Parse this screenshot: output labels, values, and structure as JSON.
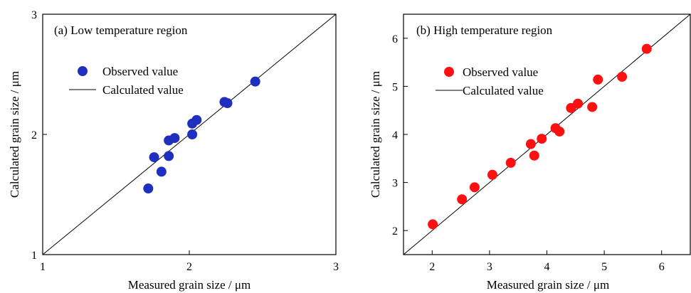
{
  "chart_data": [
    {
      "type": "scatter",
      "title": "(a) Low temperature region",
      "xlabel": "Measured grain size / μm",
      "ylabel": "Calculated grain size / μm",
      "xlim": [
        1,
        3
      ],
      "ylim": [
        1,
        3
      ],
      "x_ticks": [
        "1",
        "2",
        "3"
      ],
      "y_ticks": [
        "1",
        "2",
        "3"
      ],
      "legend": {
        "placement": "upper-left",
        "observed": "Observed value",
        "calculated": "Calculated value"
      },
      "marker_color": "#1f2fbf",
      "series": [
        {
          "name": "Observed value",
          "points": [
            [
              1.72,
              1.55
            ],
            [
              1.76,
              1.81
            ],
            [
              1.81,
              1.69
            ],
            [
              1.86,
              1.82
            ],
            [
              1.86,
              1.95
            ],
            [
              1.9,
              1.97
            ],
            [
              2.02,
              2.0
            ],
            [
              2.02,
              2.09
            ],
            [
              2.05,
              2.12
            ],
            [
              2.24,
              2.27
            ],
            [
              2.26,
              2.26
            ],
            [
              2.45,
              2.44
            ]
          ]
        },
        {
          "name": "Calculated value",
          "line": [
            [
              1,
              1
            ],
            [
              3,
              3
            ]
          ]
        }
      ]
    },
    {
      "type": "scatter",
      "title": "(b) High temperature region",
      "xlabel": "Measured grain size / μm",
      "ylabel": "Calculated grain size / μm",
      "xlim": [
        1.5,
        6.5
      ],
      "ylim": [
        1.5,
        6.5
      ],
      "x_ticks": [
        "2",
        "3",
        "4",
        "5",
        "6"
      ],
      "y_ticks": [
        "2",
        "3",
        "4",
        "5",
        "6"
      ],
      "legend": {
        "placement": "upper-left",
        "observed": "Observed value",
        "calculated": "Calculated value"
      },
      "marker_color": "#ff1010",
      "series": [
        {
          "name": "Observed value",
          "points": [
            [
              2.01,
              2.13
            ],
            [
              2.52,
              2.65
            ],
            [
              2.74,
              2.9
            ],
            [
              3.05,
              3.16
            ],
            [
              3.37,
              3.41
            ],
            [
              3.72,
              3.8
            ],
            [
              3.78,
              3.56
            ],
            [
              3.91,
              3.91
            ],
            [
              4.15,
              4.13
            ],
            [
              4.22,
              4.06
            ],
            [
              4.42,
              4.55
            ],
            [
              4.54,
              4.64
            ],
            [
              4.79,
              4.57
            ],
            [
              4.89,
              5.14
            ],
            [
              5.31,
              5.2
            ],
            [
              5.74,
              5.78
            ]
          ]
        },
        {
          "name": "Calculated value",
          "line": [
            [
              1.5,
              1.5
            ],
            [
              6.5,
              6.5
            ]
          ]
        }
      ]
    }
  ]
}
